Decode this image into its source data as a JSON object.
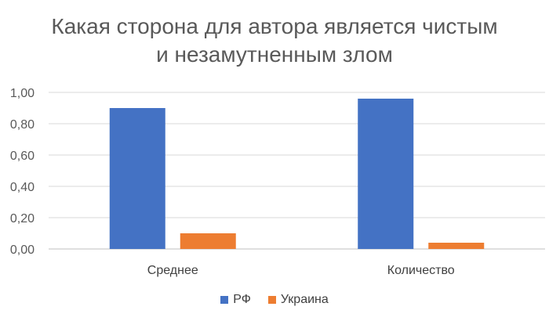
{
  "chart_data": {
    "type": "bar",
    "title_lines": [
      "Какая сторона для автора является чистым",
      "и незамутненным злом"
    ],
    "categories": [
      "Среднее",
      "Количество"
    ],
    "series": [
      {
        "name": "РФ",
        "values": [
          0.9,
          0.96
        ],
        "color": "#4472C4"
      },
      {
        "name": "Украина",
        "values": [
          0.1,
          0.04
        ],
        "color": "#ED7D31"
      }
    ],
    "y_ticks": [
      "0,00",
      "0,20",
      "0,40",
      "0,60",
      "0,80",
      "1,00"
    ],
    "ylim": [
      0,
      1
    ],
    "grid": true,
    "legend_position": "bottom"
  }
}
